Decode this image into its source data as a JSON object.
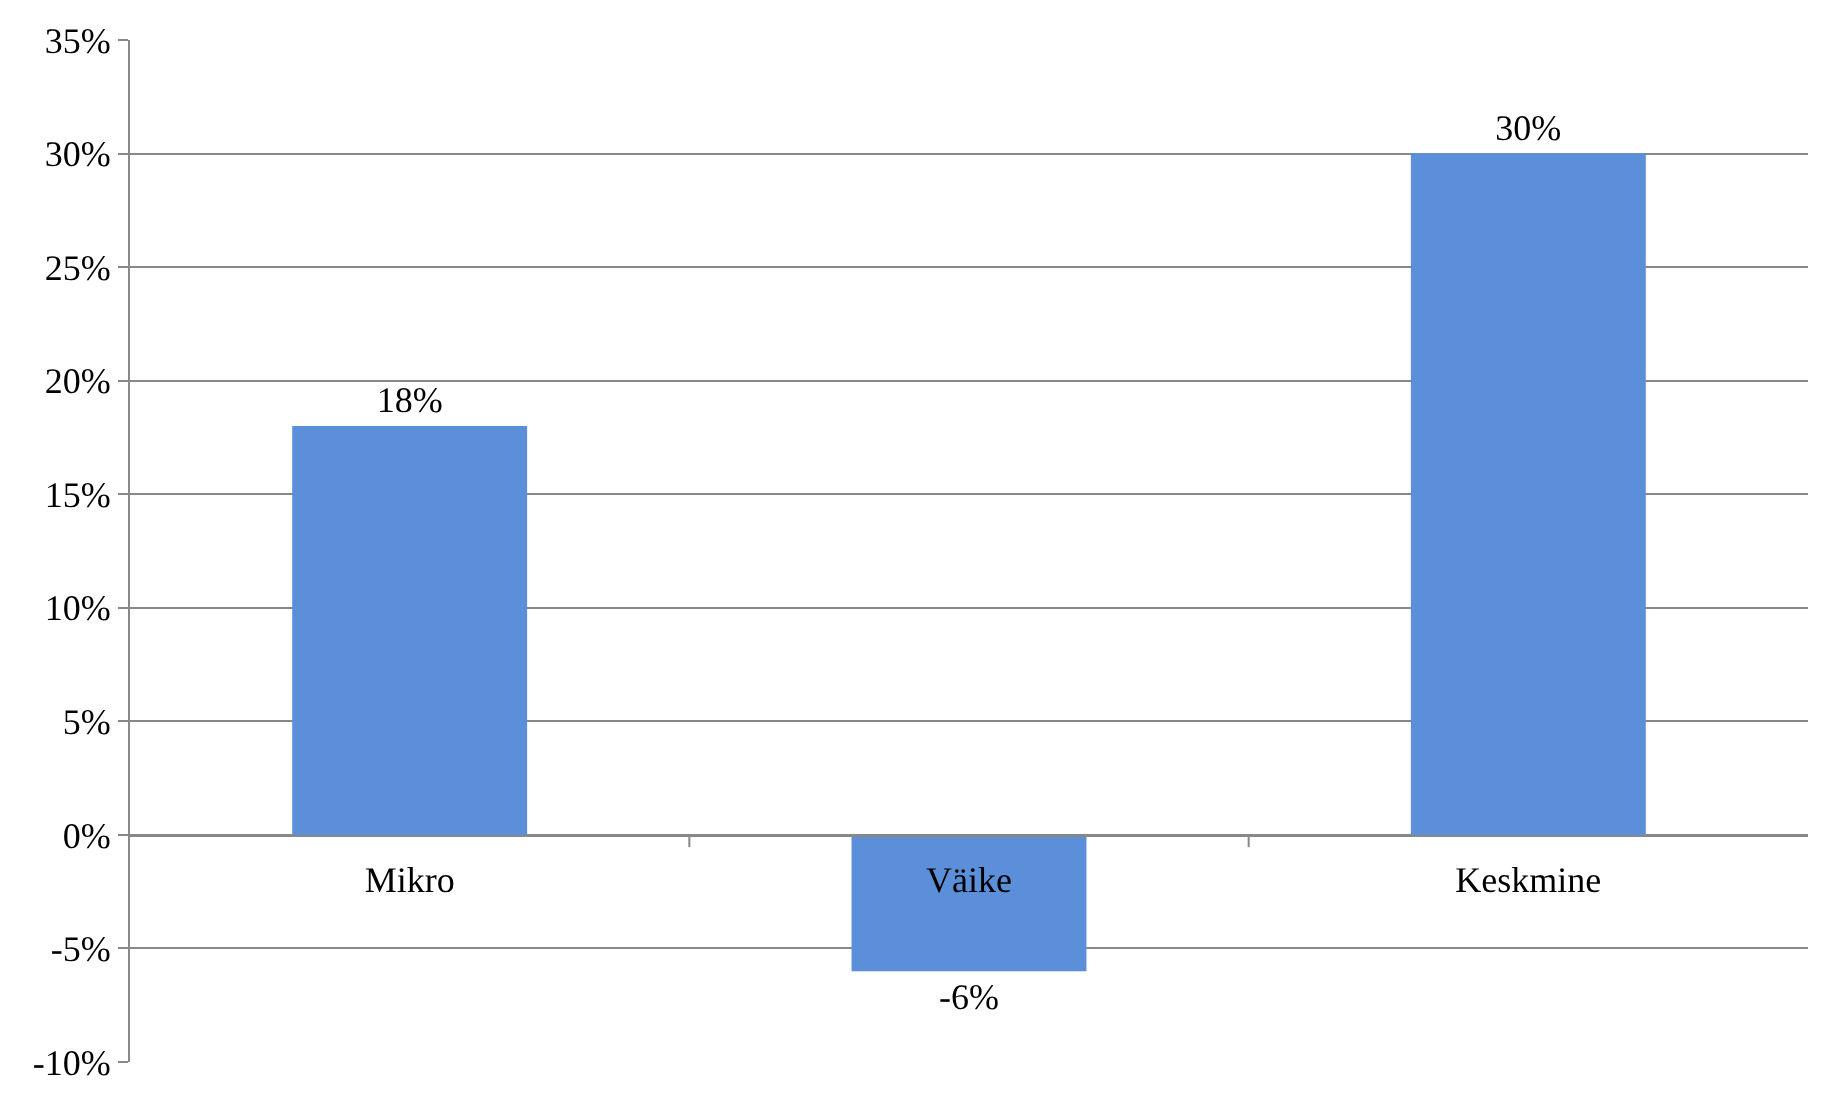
{
  "chart_data": {
    "type": "bar",
    "categories": [
      "Mikro",
      "Väike",
      "Keskmine"
    ],
    "values": [
      18,
      -6,
      30
    ],
    "color": "#5b8fd9",
    "value_labels": [
      "18%",
      "-6%",
      "30%"
    ],
    "ylim": [
      -10,
      35
    ],
    "yticks": [
      {
        "value": -10,
        "label": "-10%"
      },
      {
        "value": -5,
        "label": "-5%"
      },
      {
        "value": 0,
        "label": "0%"
      },
      {
        "value": 5,
        "label": "5%"
      },
      {
        "value": 10,
        "label": "10%"
      },
      {
        "value": 15,
        "label": "15%"
      },
      {
        "value": 20,
        "label": "20%"
      },
      {
        "value": 25,
        "label": "25%"
      },
      {
        "value": 30,
        "label": "30%"
      },
      {
        "value": 35,
        "label": "35%"
      }
    ],
    "grid": "y",
    "legend": false
  }
}
